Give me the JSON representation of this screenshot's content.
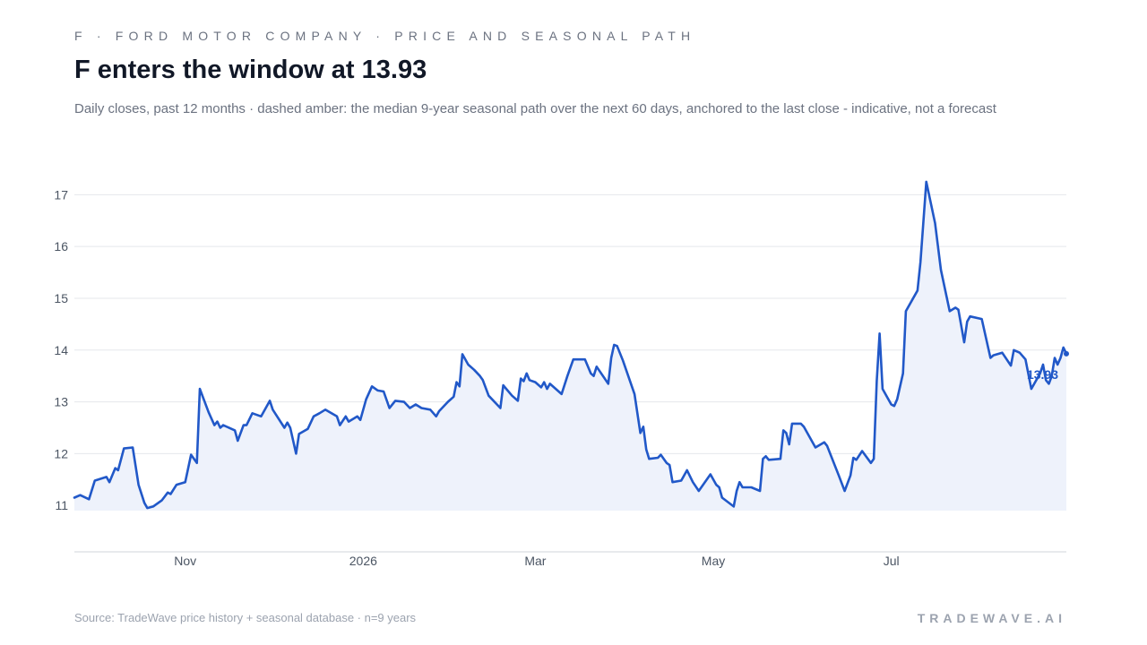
{
  "header": {
    "kicker": "F · FORD MOTOR COMPANY · PRICE AND SEASONAL PATH",
    "title": "F enters the window at 13.93",
    "subtitle": "Daily closes, past 12 months · dashed amber: the median 9-year seasonal path over the next 60 days, anchored to the last close - indicative, not a forecast"
  },
  "footer": {
    "source": "Source: TradeWave price history + seasonal database · n=9 years",
    "brand": "TRADEWAVE.AI"
  },
  "colors": {
    "line": "#2158c8",
    "fill": "#eef2fb",
    "grid": "#e5e7eb",
    "axis": "#d1d5db",
    "tick": "#4b5563"
  },
  "chart_data": {
    "type": "line",
    "ylim": [
      10.9,
      17.3
    ],
    "yticks": [
      11,
      12,
      13,
      14,
      15,
      16,
      17
    ],
    "xlim": [
      "2025-09-24",
      "2026-08-30"
    ],
    "xticks": [
      {
        "label": "Nov",
        "date": "2025-11-01"
      },
      {
        "label": "2026",
        "date": "2026-01-01"
      },
      {
        "label": "Mar",
        "date": "2026-03-01"
      },
      {
        "label": "May",
        "date": "2026-05-01"
      },
      {
        "label": "Jul",
        "date": "2026-07-01"
      }
    ],
    "last_label": "13.93",
    "series": [
      {
        "values": [
          [
            "2025-09-24",
            11.15
          ],
          [
            "2025-09-26",
            11.2
          ],
          [
            "2025-09-29",
            11.12
          ],
          [
            "2025-10-01",
            11.48
          ],
          [
            "2025-10-05",
            11.55
          ],
          [
            "2025-10-06",
            11.45
          ],
          [
            "2025-10-08",
            11.72
          ],
          [
            "2025-10-09",
            11.68
          ],
          [
            "2025-10-11",
            12.1
          ],
          [
            "2025-10-14",
            12.12
          ],
          [
            "2025-10-16",
            11.4
          ],
          [
            "2025-10-18",
            11.05
          ],
          [
            "2025-10-19",
            10.95
          ],
          [
            "2025-10-21",
            10.98
          ],
          [
            "2025-10-24",
            11.1
          ],
          [
            "2025-10-26",
            11.25
          ],
          [
            "2025-10-27",
            11.22
          ],
          [
            "2025-10-29",
            11.4
          ],
          [
            "2025-11-01",
            11.45
          ],
          [
            "2025-11-03",
            11.98
          ],
          [
            "2025-11-05",
            11.82
          ],
          [
            "2025-11-06",
            13.25
          ],
          [
            "2025-11-09",
            12.8
          ],
          [
            "2025-11-11",
            12.55
          ],
          [
            "2025-11-12",
            12.62
          ],
          [
            "2025-11-13",
            12.5
          ],
          [
            "2025-11-14",
            12.55
          ],
          [
            "2025-11-18",
            12.45
          ],
          [
            "2025-11-19",
            12.25
          ],
          [
            "2025-11-21",
            12.55
          ],
          [
            "2025-11-22",
            12.55
          ],
          [
            "2025-11-24",
            12.78
          ],
          [
            "2025-11-27",
            12.72
          ],
          [
            "2025-11-30",
            13.02
          ],
          [
            "2025-12-01",
            12.85
          ],
          [
            "2025-12-05",
            12.5
          ],
          [
            "2025-12-06",
            12.6
          ],
          [
            "2025-12-07",
            12.5
          ],
          [
            "2025-12-09",
            12.0
          ],
          [
            "2025-12-10",
            12.38
          ],
          [
            "2025-12-13",
            12.48
          ],
          [
            "2025-12-15",
            12.72
          ],
          [
            "2025-12-17",
            12.78
          ],
          [
            "2025-12-19",
            12.85
          ],
          [
            "2025-12-23",
            12.72
          ],
          [
            "2025-12-24",
            12.55
          ],
          [
            "2025-12-26",
            12.72
          ],
          [
            "2025-12-27",
            12.62
          ],
          [
            "2025-12-30",
            12.72
          ],
          [
            "2025-12-31",
            12.65
          ],
          [
            "2026-01-02",
            13.05
          ],
          [
            "2026-01-04",
            13.3
          ],
          [
            "2026-01-06",
            13.22
          ],
          [
            "2026-01-08",
            13.2
          ],
          [
            "2026-01-10",
            12.88
          ],
          [
            "2026-01-12",
            13.02
          ],
          [
            "2026-01-15",
            13.0
          ],
          [
            "2026-01-17",
            12.88
          ],
          [
            "2026-01-19",
            12.95
          ],
          [
            "2026-01-21",
            12.88
          ],
          [
            "2026-01-24",
            12.85
          ],
          [
            "2026-01-26",
            12.72
          ],
          [
            "2026-01-27",
            12.82
          ],
          [
            "2026-01-30",
            13.0
          ],
          [
            "2026-02-01",
            13.1
          ],
          [
            "2026-02-02",
            13.38
          ],
          [
            "2026-02-03",
            13.3
          ],
          [
            "2026-02-04",
            13.92
          ],
          [
            "2026-02-06",
            13.72
          ],
          [
            "2026-02-08",
            13.62
          ],
          [
            "2026-02-10",
            13.5
          ],
          [
            "2026-02-11",
            13.42
          ],
          [
            "2026-02-13",
            13.12
          ],
          [
            "2026-02-17",
            12.88
          ],
          [
            "2026-02-18",
            13.32
          ],
          [
            "2026-02-21",
            13.12
          ],
          [
            "2026-02-23",
            13.02
          ],
          [
            "2026-02-24",
            13.45
          ],
          [
            "2026-02-25",
            13.4
          ],
          [
            "2026-02-26",
            13.55
          ],
          [
            "2026-02-27",
            13.42
          ],
          [
            "2026-03-01",
            13.38
          ],
          [
            "2026-03-03",
            13.28
          ],
          [
            "2026-03-04",
            13.38
          ],
          [
            "2026-03-05",
            13.25
          ],
          [
            "2026-03-06",
            13.35
          ],
          [
            "2026-03-10",
            13.15
          ],
          [
            "2026-03-12",
            13.5
          ],
          [
            "2026-03-14",
            13.82
          ],
          [
            "2026-03-18",
            13.82
          ],
          [
            "2026-03-20",
            13.55
          ],
          [
            "2026-03-21",
            13.5
          ],
          [
            "2026-03-22",
            13.68
          ],
          [
            "2026-03-26",
            13.35
          ],
          [
            "2026-03-27",
            13.85
          ],
          [
            "2026-03-28",
            14.1
          ],
          [
            "2026-03-29",
            14.08
          ],
          [
            "2026-03-31",
            13.8
          ],
          [
            "2026-04-04",
            13.15
          ],
          [
            "2026-04-06",
            12.4
          ],
          [
            "2026-04-07",
            12.52
          ],
          [
            "2026-04-08",
            12.08
          ],
          [
            "2026-04-09",
            11.9
          ],
          [
            "2026-04-12",
            11.92
          ],
          [
            "2026-04-13",
            11.98
          ],
          [
            "2026-04-15",
            11.82
          ],
          [
            "2026-04-16",
            11.78
          ],
          [
            "2026-04-17",
            11.45
          ],
          [
            "2026-04-20",
            11.48
          ],
          [
            "2026-04-22",
            11.68
          ],
          [
            "2026-04-24",
            11.45
          ],
          [
            "2026-04-26",
            11.28
          ],
          [
            "2026-04-30",
            11.6
          ],
          [
            "2026-05-02",
            11.4
          ],
          [
            "2026-05-03",
            11.35
          ],
          [
            "2026-05-04",
            11.15
          ],
          [
            "2026-05-08",
            10.98
          ],
          [
            "2026-05-09",
            11.28
          ],
          [
            "2026-05-10",
            11.45
          ],
          [
            "2026-05-11",
            11.35
          ],
          [
            "2026-05-14",
            11.35
          ],
          [
            "2026-05-17",
            11.28
          ],
          [
            "2026-05-18",
            11.9
          ],
          [
            "2026-05-19",
            11.95
          ],
          [
            "2026-05-20",
            11.88
          ],
          [
            "2026-05-24",
            11.9
          ],
          [
            "2026-05-25",
            12.45
          ],
          [
            "2026-05-26",
            12.4
          ],
          [
            "2026-05-27",
            12.18
          ],
          [
            "2026-05-28",
            12.58
          ],
          [
            "2026-05-31",
            12.58
          ],
          [
            "2026-06-01",
            12.52
          ],
          [
            "2026-06-05",
            12.12
          ],
          [
            "2026-06-08",
            12.22
          ],
          [
            "2026-06-09",
            12.15
          ],
          [
            "2026-06-13",
            11.58
          ],
          [
            "2026-06-15",
            11.28
          ],
          [
            "2026-06-17",
            11.58
          ],
          [
            "2026-06-18",
            11.92
          ],
          [
            "2026-06-19",
            11.88
          ],
          [
            "2026-06-21",
            12.05
          ],
          [
            "2026-06-24",
            11.82
          ],
          [
            "2026-06-25",
            11.9
          ],
          [
            "2026-06-26",
            13.4
          ],
          [
            "2026-06-27",
            14.32
          ],
          [
            "2026-06-28",
            13.25
          ],
          [
            "2026-07-01",
            12.95
          ],
          [
            "2026-07-02",
            12.92
          ],
          [
            "2026-07-03",
            13.05
          ],
          [
            "2026-07-05",
            13.55
          ],
          [
            "2026-07-06",
            14.75
          ],
          [
            "2026-07-10",
            15.15
          ],
          [
            "2026-07-11",
            15.7
          ],
          [
            "2026-07-13",
            17.25
          ],
          [
            "2026-07-16",
            16.45
          ],
          [
            "2026-07-18",
            15.55
          ],
          [
            "2026-07-21",
            14.75
          ],
          [
            "2026-07-23",
            14.82
          ],
          [
            "2026-07-24",
            14.78
          ],
          [
            "2026-07-26",
            14.15
          ],
          [
            "2026-07-27",
            14.55
          ],
          [
            "2026-07-28",
            14.65
          ],
          [
            "2026-08-01",
            14.6
          ],
          [
            "2026-08-04",
            13.85
          ],
          [
            "2026-08-05",
            13.9
          ],
          [
            "2026-08-08",
            13.95
          ],
          [
            "2026-08-11",
            13.7
          ],
          [
            "2026-08-12",
            14.0
          ],
          [
            "2026-08-14",
            13.95
          ],
          [
            "2026-08-16",
            13.82
          ],
          [
            "2026-08-18",
            13.25
          ],
          [
            "2026-08-21",
            13.55
          ],
          [
            "2026-08-22",
            13.72
          ],
          [
            "2026-08-23",
            13.42
          ],
          [
            "2026-08-24",
            13.35
          ],
          [
            "2026-08-25",
            13.5
          ],
          [
            "2026-08-26",
            13.85
          ],
          [
            "2026-08-27",
            13.72
          ],
          [
            "2026-08-28",
            13.85
          ],
          [
            "2026-08-29",
            14.05
          ],
          [
            "2026-08-30",
            13.93
          ]
        ]
      }
    ]
  }
}
